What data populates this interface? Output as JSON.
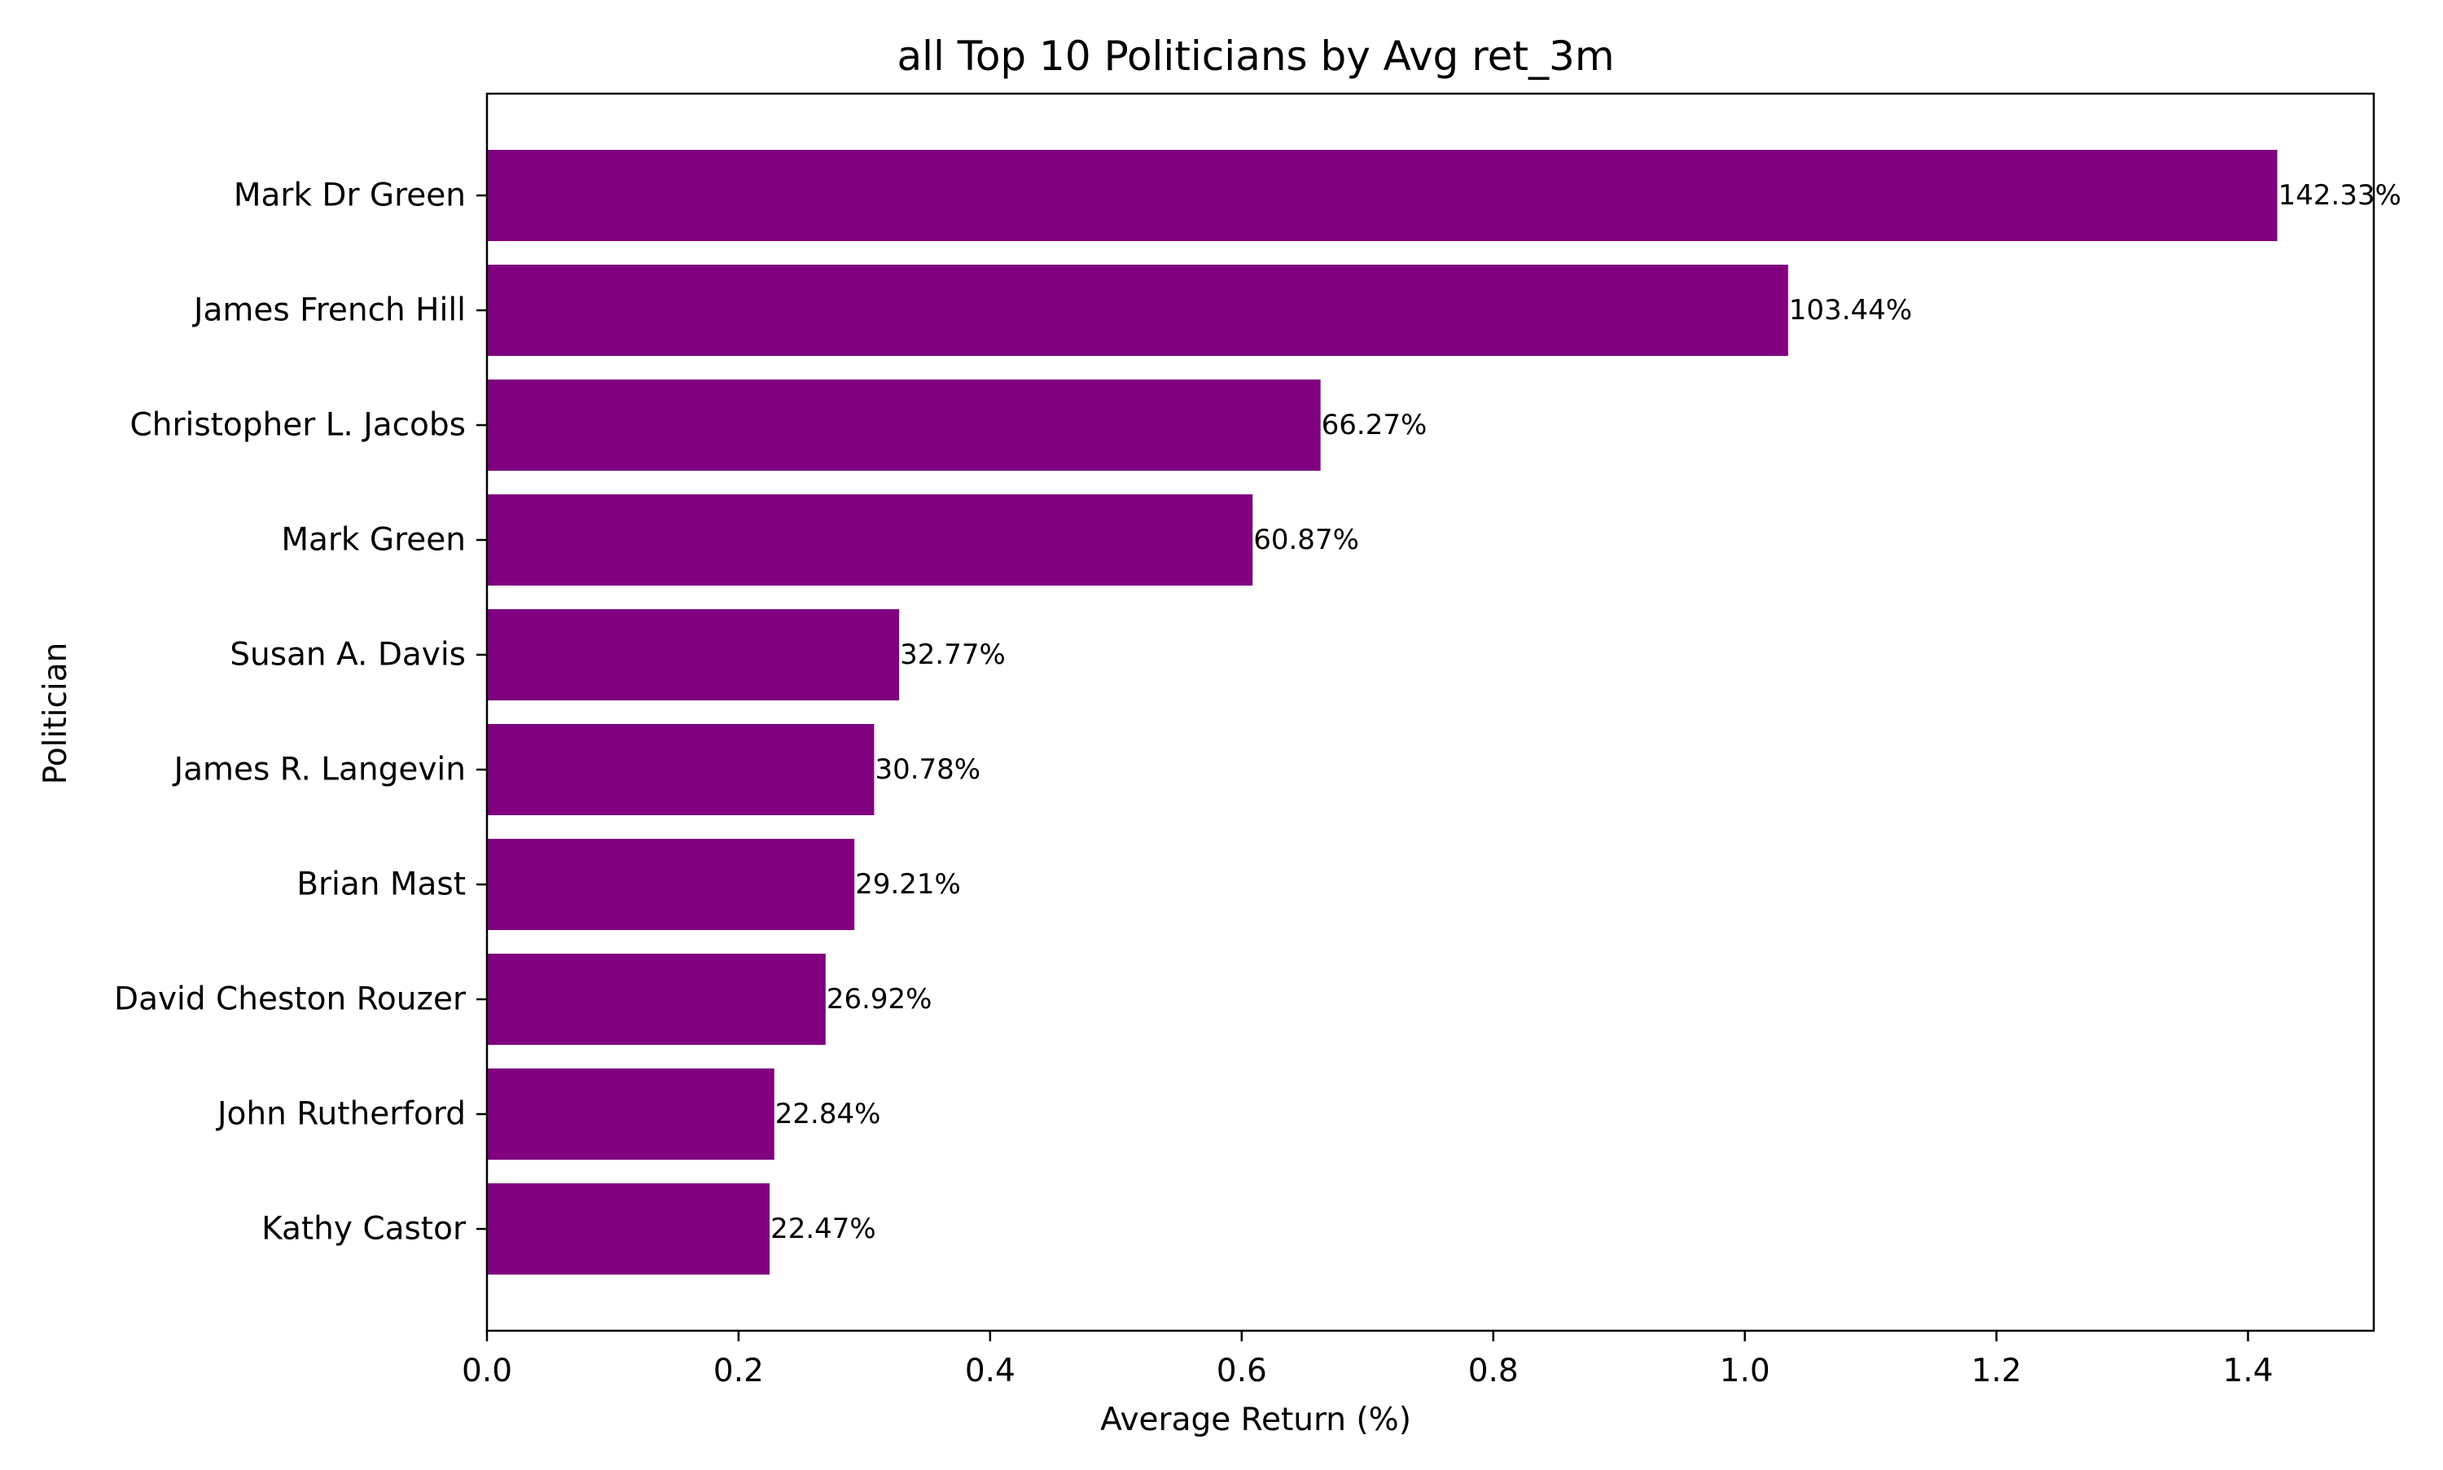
{
  "chart_data": {
    "type": "bar",
    "orientation": "horizontal",
    "title": "all Top 10 Politicians by Avg ret_3m",
    "xlabel": "Average Return (%)",
    "ylabel": "Politician",
    "xlim": [
      0.0,
      1.5
    ],
    "xticks": [
      "0.0",
      "0.2",
      "0.4",
      "0.6",
      "0.8",
      "1.0",
      "1.2",
      "1.4"
    ],
    "grid": false,
    "bar_color": "#800080",
    "categories": [
      "Mark Dr Green",
      "James French Hill",
      "Christopher L. Jacobs",
      "Mark Green",
      "Susan A. Davis",
      "James R. Langevin",
      "Brian Mast",
      "David Cheston Rouzer",
      "John Rutherford",
      "Kathy Castor"
    ],
    "values": [
      1.4233,
      1.0344,
      0.6627,
      0.6087,
      0.3277,
      0.3078,
      0.2921,
      0.2692,
      0.2284,
      0.2247
    ],
    "value_labels": [
      "142.33%",
      "103.44%",
      "66.27%",
      "60.87%",
      "32.77%",
      "30.78%",
      "29.21%",
      "26.92%",
      "22.84%",
      "22.47%"
    ]
  }
}
